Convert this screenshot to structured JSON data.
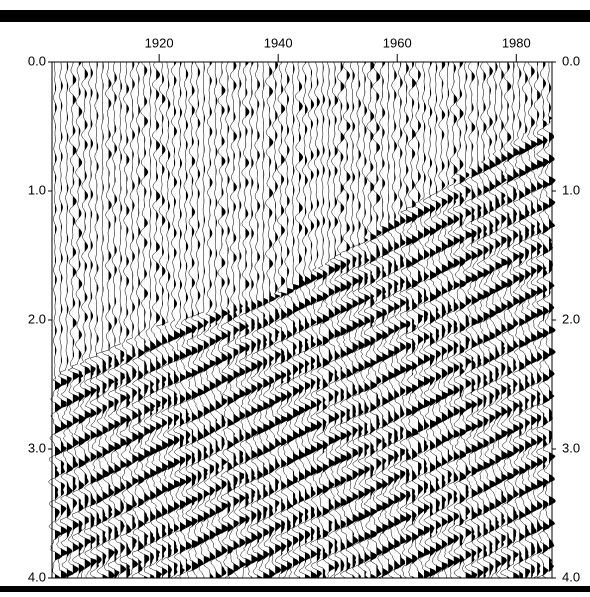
{
  "chart_data": {
    "type": "wiggle",
    "xlim": [
      1902,
      1986
    ],
    "xticks": [
      1920,
      1940,
      1960,
      1980
    ],
    "ylim": [
      0,
      4
    ],
    "yticks": [
      {
        "value": 0,
        "label": "0.0"
      },
      {
        "value": 1,
        "label": "1.0"
      },
      {
        "value": 2,
        "label": "2.0"
      },
      {
        "value": 3,
        "label": "3.0"
      },
      {
        "value": 4,
        "label": "4.0"
      }
    ]
  }
}
